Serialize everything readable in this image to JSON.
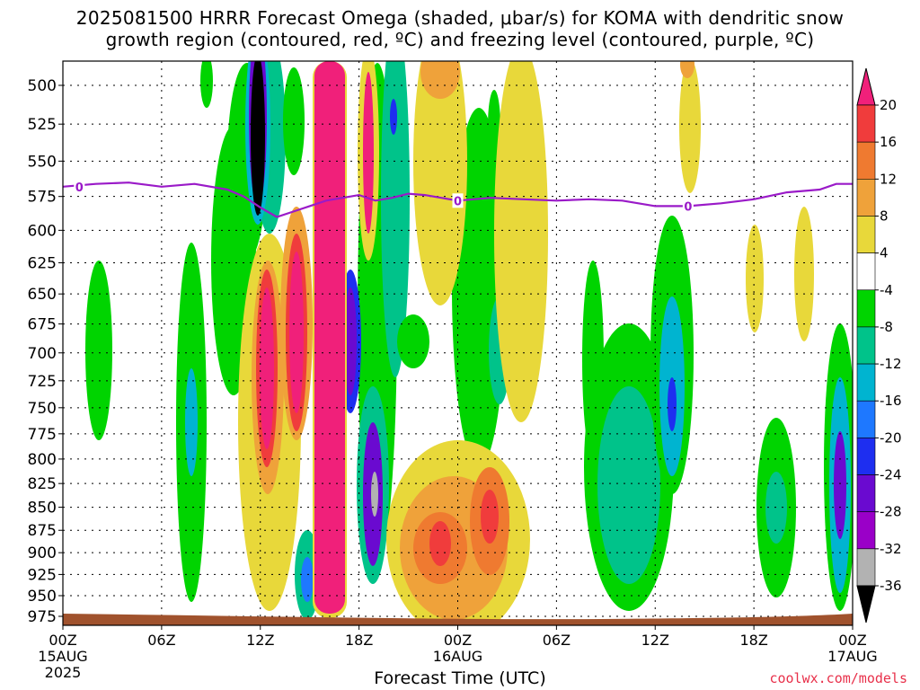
{
  "title": {
    "line1": "2025081500 HRRR Forecast Omega (shaded, μbar/s) for KOMA with dendritic snow",
    "line2": "growth region (contoured, red, ºC) and freezing level (contoured, purple, ºC)"
  },
  "xlabel": "Forecast Time (UTC)",
  "credit": "coolwx.com/models",
  "colors": {
    "freezing_level": "#9a1ac8",
    "ground": "#a0522d",
    "neg_shades": [
      "#00d400",
      "#00c38a",
      "#00b4d0",
      "#1e78ff",
      "#1e2ef0",
      "#6a0ad0",
      "#9a00c8",
      "#b2b2b2",
      "#000000"
    ],
    "pos_shades": [
      "#e8d83a",
      "#f0b43a",
      "#eb8a32",
      "#f04a3c",
      "#f21a8c"
    ]
  },
  "chart_data": {
    "type": "heatmap",
    "variable": "Omega",
    "units": "μbar/s",
    "model": "HRRR",
    "site": "KOMA",
    "init": "2025081500",
    "x_ticks": [
      {
        "label": "00Z",
        "date": "15AUG",
        "year": "2025",
        "hours": 0
      },
      {
        "label": "06Z",
        "date": "",
        "year": "",
        "hours": 6
      },
      {
        "label": "12Z",
        "date": "",
        "year": "",
        "hours": 12
      },
      {
        "label": "18Z",
        "date": "",
        "year": "",
        "hours": 18
      },
      {
        "label": "00Z",
        "date": "16AUG",
        "year": "",
        "hours": 24
      },
      {
        "label": "06Z",
        "date": "",
        "year": "",
        "hours": 30
      },
      {
        "label": "12Z",
        "date": "",
        "year": "",
        "hours": 36
      },
      {
        "label": "18Z",
        "date": "",
        "year": "",
        "hours": 42
      },
      {
        "label": "00Z",
        "date": "17AUG",
        "year": "",
        "hours": 48
      }
    ],
    "xlim": [
      0,
      48
    ],
    "y_ticks": [
      500,
      525,
      550,
      575,
      600,
      625,
      650,
      675,
      700,
      725,
      750,
      775,
      800,
      825,
      850,
      875,
      900,
      925,
      950,
      975
    ],
    "ylim": [
      487,
      982
    ],
    "y_scale": "log-pressure",
    "colorbar": {
      "labels": [
        "20",
        "16",
        "12",
        "8",
        "4",
        "-4",
        "-8",
        "-12",
        "-16",
        "-20",
        "-24",
        "-28",
        "-32",
        "-36"
      ],
      "bins": [
        {
          "lo": 20,
          "hi": null,
          "color": "#f0207a"
        },
        {
          "lo": 16,
          "hi": 20,
          "color": "#f03c3c"
        },
        {
          "lo": 12,
          "hi": 16,
          "color": "#ef7a30"
        },
        {
          "lo": 8,
          "hi": 12,
          "color": "#efa23a"
        },
        {
          "lo": 4,
          "hi": 8,
          "color": "#e8d83a"
        },
        {
          "lo": -4,
          "hi": 4,
          "color": "#ffffff"
        },
        {
          "lo": -8,
          "hi": -4,
          "color": "#00d400"
        },
        {
          "lo": -12,
          "hi": -8,
          "color": "#00c38a"
        },
        {
          "lo": -16,
          "hi": -12,
          "color": "#00b4d0"
        },
        {
          "lo": -20,
          "hi": -16,
          "color": "#1e78ff"
        },
        {
          "lo": -24,
          "hi": -20,
          "color": "#1e2ef0"
        },
        {
          "lo": -28,
          "hi": -24,
          "color": "#6a0ad0"
        },
        {
          "lo": -32,
          "hi": -28,
          "color": "#9a00c8"
        },
        {
          "lo": -36,
          "hi": -32,
          "color": "#b2b2b2"
        },
        {
          "lo": null,
          "hi": -36,
          "color": "#000000"
        }
      ]
    },
    "freezing_level_contour": {
      "label": "0",
      "hours": [
        0,
        2,
        4,
        6,
        8,
        10,
        11,
        12,
        13,
        14,
        15,
        16,
        17,
        18,
        19,
        20,
        21,
        22,
        23,
        24,
        26,
        28,
        30,
        32,
        34,
        36,
        38,
        40,
        42,
        44,
        46,
        47,
        48
      ],
      "pressure": [
        568,
        566,
        565,
        568,
        566,
        570,
        575,
        583,
        590,
        586,
        582,
        578,
        576,
        574,
        578,
        576,
        573,
        574,
        576,
        578,
        576,
        577,
        578,
        577,
        578,
        582,
        582,
        580,
        577,
        572,
        570,
        566,
        566
      ],
      "label_hours": [
        1,
        24,
        38
      ]
    },
    "ground_level_hpa": [
      975,
      982
    ]
  }
}
